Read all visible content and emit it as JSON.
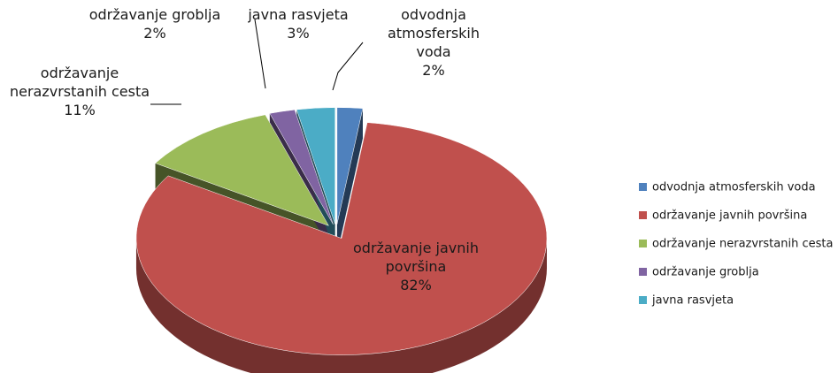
{
  "chart_data": {
    "type": "pie",
    "categories": [
      "odvodnja atmosferskih voda",
      "održavanje javnih površina",
      "održavanje nerazvrstanih cesta",
      "održavanje groblja",
      "javna rasvjeta"
    ],
    "values": [
      2,
      82,
      11,
      2,
      3
    ],
    "value_labels": [
      "2%",
      "82%",
      "11%",
      "2%",
      "3%"
    ],
    "colors": [
      "#4f81bd",
      "#c0504d",
      "#9bbb59",
      "#8064a2",
      "#4bacc6"
    ],
    "legend": "right"
  }
}
